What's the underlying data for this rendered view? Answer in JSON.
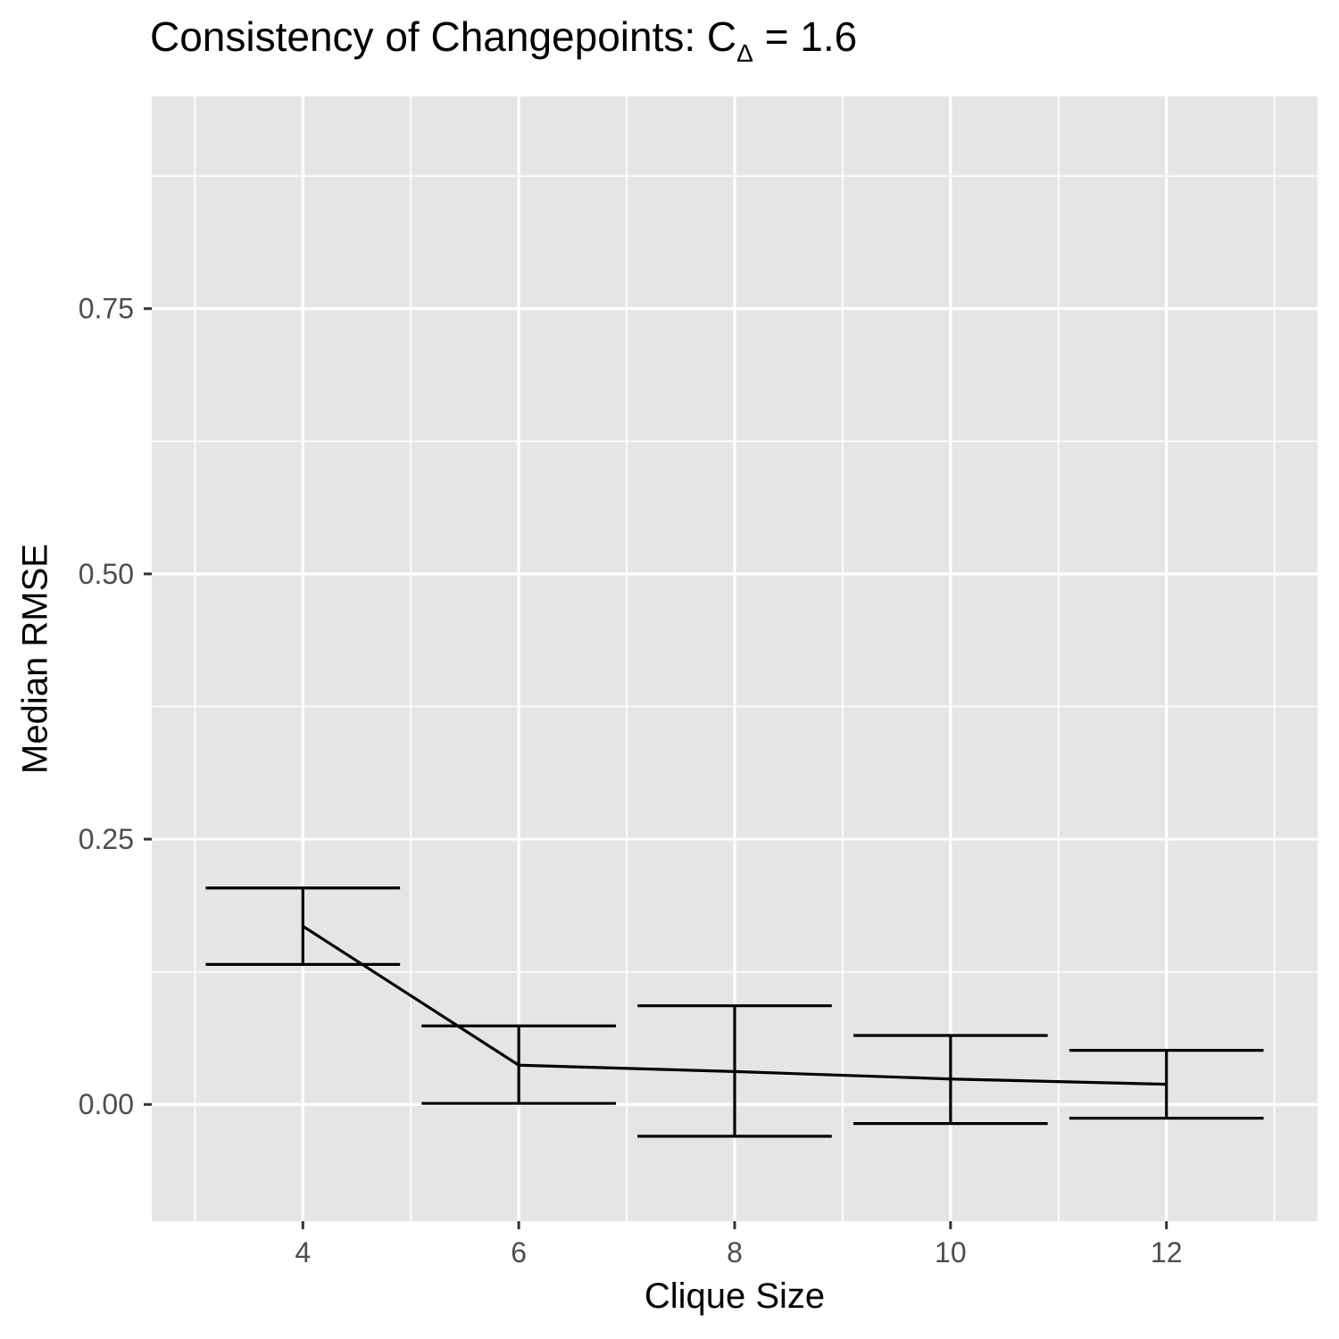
{
  "title": {
    "main": "Consistency of Changepoints: C",
    "subscript": "Δ",
    "suffix": " = 1.6"
  },
  "chart_data": {
    "type": "line",
    "xlabel": "Clique Size",
    "ylabel": "Median RMSE",
    "xlim": [
      2.6,
      13.4
    ],
    "ylim": [
      -0.11,
      0.95
    ],
    "x_ticks": [
      4,
      6,
      8,
      10,
      12
    ],
    "x_tick_labels": [
      "4",
      "6",
      "8",
      "10",
      "12"
    ],
    "y_ticks": [
      0.0,
      0.25,
      0.5,
      0.75
    ],
    "y_tick_labels": [
      "0.00",
      "0.25",
      "0.50",
      "0.75"
    ],
    "grid": true,
    "series": [
      {
        "x": [
          4,
          6,
          8,
          10,
          12
        ],
        "y": [
          0.168,
          0.037,
          0.031,
          0.024,
          0.019
        ],
        "ymin": [
          0.132,
          0.001,
          -0.03,
          -0.018,
          -0.013
        ],
        "ymax": [
          0.204,
          0.074,
          0.093,
          0.065,
          0.051
        ]
      }
    ],
    "errorbar_halfwidth": 0.9,
    "colors": {
      "panel": "#e5e5e5",
      "grid": "#ffffff",
      "line": "#000000",
      "axis_text": "#4d4d4d"
    }
  }
}
